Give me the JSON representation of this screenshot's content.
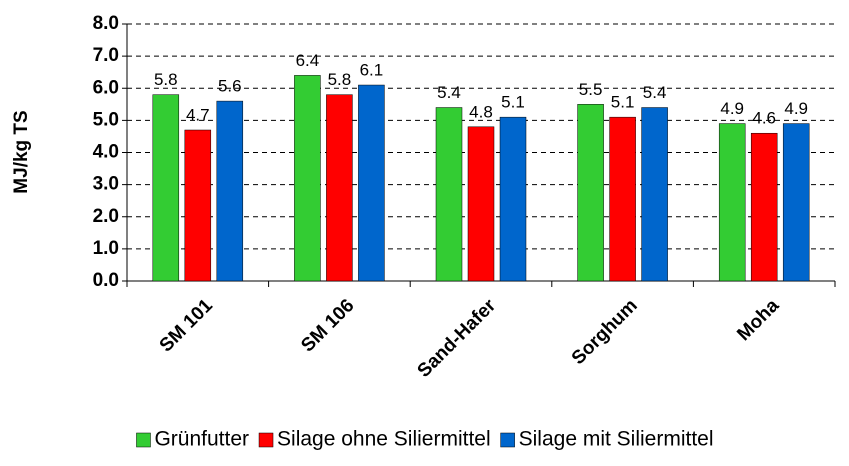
{
  "chart_data": {
    "type": "bar",
    "y_label": "MJ/kg TS",
    "categories": [
      "SM 101",
      "SM 106",
      "Sand-Hafer",
      "Sorghum",
      "Moha"
    ],
    "series": [
      {
        "name": "Grünfutter",
        "color": "#33cc33",
        "values": [
          5.8,
          6.4,
          5.4,
          5.5,
          4.9
        ]
      },
      {
        "name": "Silage ohne Siliermittel",
        "color": "#ff0000",
        "values": [
          4.7,
          5.8,
          4.8,
          5.1,
          4.6
        ]
      },
      {
        "name": "Silage mit Siliermittel",
        "color": "#0066cc",
        "values": [
          5.6,
          6.1,
          5.1,
          5.4,
          4.9
        ]
      }
    ],
    "ylim": [
      0,
      8
    ],
    "yticks": [
      {
        "value": 0,
        "label": "0.0"
      },
      {
        "value": 1,
        "label": "1.0"
      },
      {
        "value": 2,
        "label": "2.0"
      },
      {
        "value": 3,
        "label": "3.0"
      },
      {
        "value": 4,
        "label": "4.0"
      },
      {
        "value": 5,
        "label": "5.0"
      },
      {
        "value": 6,
        "label": "6.0"
      },
      {
        "value": 7,
        "label": "7.0"
      },
      {
        "value": 8,
        "label": "8.0"
      }
    ],
    "grid": true,
    "legend": "bottom"
  }
}
